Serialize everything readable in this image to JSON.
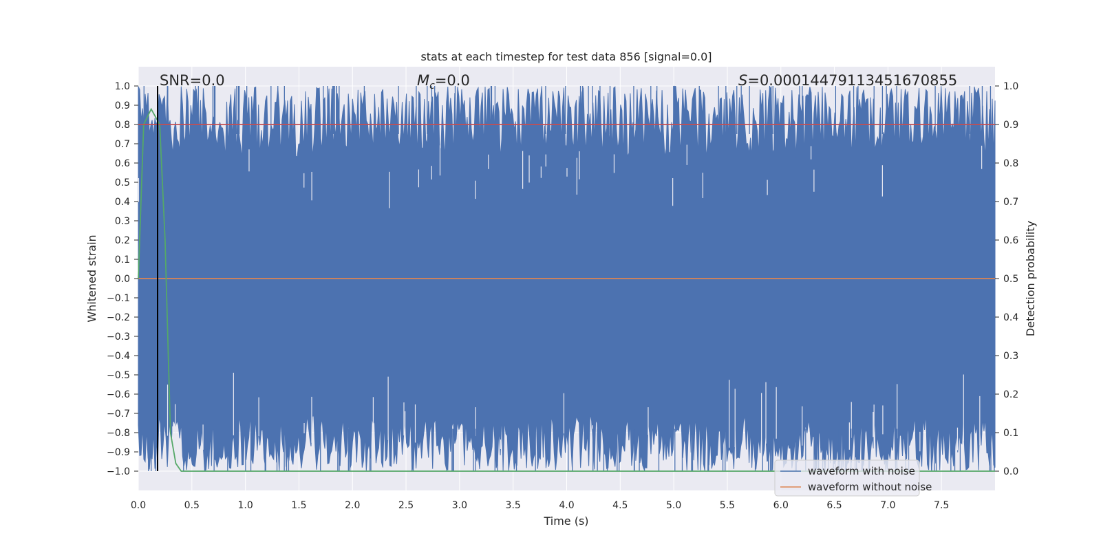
{
  "chart_data": {
    "type": "line",
    "title": "stats at each timestep for test data 856 [signal=0.0]",
    "xlabel": "Time (s)",
    "ylabel_left": "Whitened strain",
    "ylabel_right": "Detection probability",
    "xlim": [
      0.0,
      8.0
    ],
    "ylim_left": [
      -1.1,
      1.1
    ],
    "ylim_right": [
      -0.05,
      1.05
    ],
    "x_ticks": [
      "0.0",
      "0.5",
      "1.0",
      "1.5",
      "2.0",
      "2.5",
      "3.0",
      "3.5",
      "4.0",
      "4.5",
      "5.0",
      "5.5",
      "6.0",
      "6.5",
      "7.0",
      "7.5"
    ],
    "y_left_ticks": [
      "1.0",
      "0.9",
      "0.8",
      "0.7",
      "0.6",
      "0.5",
      "0.4",
      "0.3",
      "0.2",
      "0.1",
      "0.0",
      "−0.1",
      "−0.2",
      "−0.3",
      "−0.4",
      "−0.5",
      "−0.6",
      "−0.7",
      "−0.8",
      "−0.9",
      "−1.0"
    ],
    "y_right_ticks": [
      "1.0",
      "0.9",
      "0.8",
      "0.7",
      "0.6",
      "0.5",
      "0.4",
      "0.3",
      "0.2",
      "0.1",
      "0.0"
    ],
    "grid": true,
    "annotations": {
      "snr": "SNR=0.0",
      "mc_symbol": "M",
      "mc_sub": "c",
      "mc_value": "=0.0",
      "s_symbol": "S",
      "s_value": "=0.00014479113451670855"
    },
    "series": [
      {
        "name": "waveform with noise",
        "axis": "left",
        "color": "#4c72b0",
        "description_values": {
          "min": -1.0,
          "max": 1.0,
          "duration_s": 8.0
        }
      },
      {
        "name": "waveform without noise",
        "axis": "left",
        "color": "#dd8452",
        "x": [
          0.0,
          8.0
        ],
        "y": [
          0.0,
          0.0
        ]
      },
      {
        "axis": "right",
        "color": "#55a868",
        "x": [
          0.0,
          0.05,
          0.12,
          0.2,
          0.25,
          0.3,
          0.35,
          0.4,
          8.0
        ],
        "y": [
          0.5,
          0.9,
          0.94,
          0.9,
          0.6,
          0.1,
          0.02,
          0.0,
          0.0
        ]
      },
      {
        "axis": "right",
        "color": "#c44e52",
        "x": [
          0.0,
          8.0
        ],
        "y": [
          0.9,
          0.9
        ]
      }
    ],
    "marker_x": 0.18,
    "legend_location": "lower-right",
    "legend": [
      "waveform with noise",
      "waveform without noise"
    ],
    "colors": {
      "background": "#eaeaf2",
      "grid": "#ffffff",
      "noise": "#4c72b0",
      "clean": "#dd8452",
      "prob": "#55a868",
      "threshold": "#c44e52",
      "marker": "#000000"
    }
  }
}
